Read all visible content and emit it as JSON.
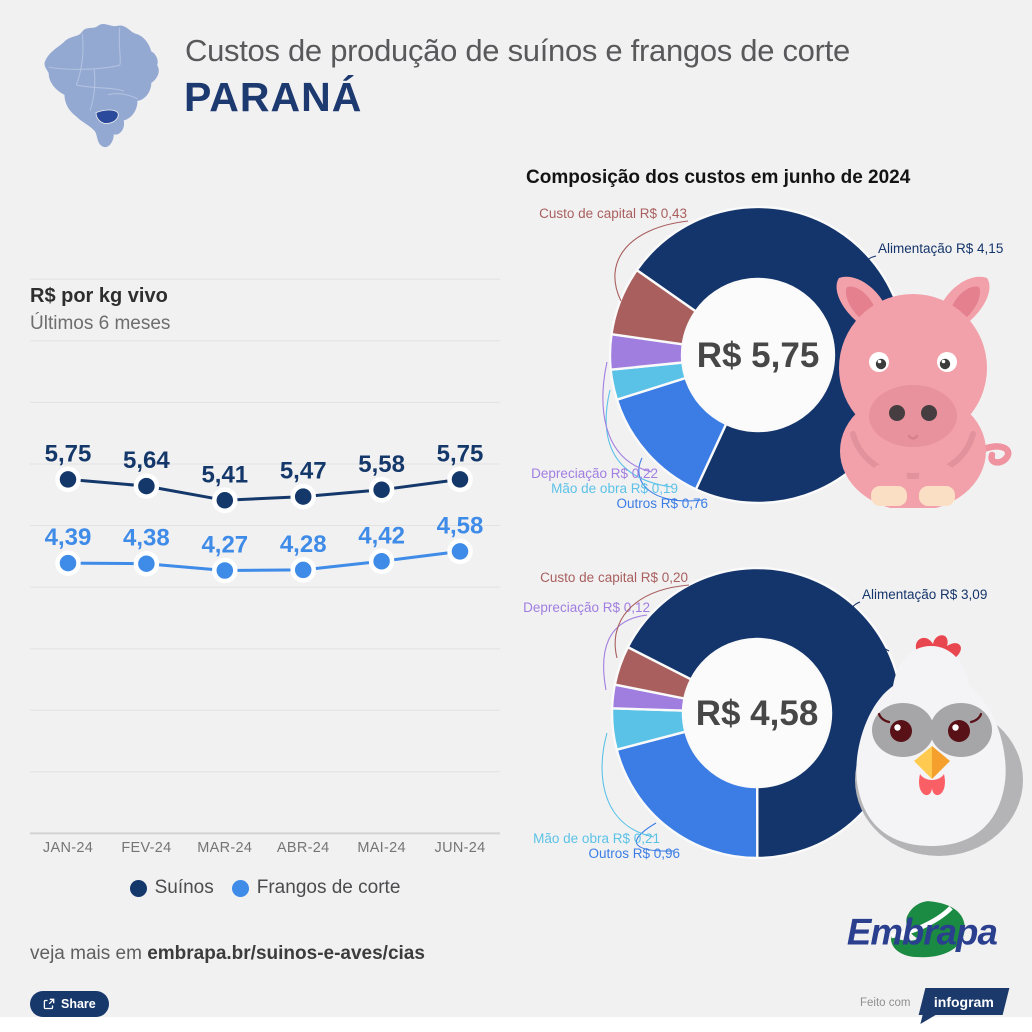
{
  "header": {
    "title": "Custos de produção de suínos e frangos de corte",
    "region": "PARANÁ",
    "map_icon": "brazil-map-parana-highlighted"
  },
  "left_panel": {
    "heading": "R$ por kg vivo",
    "subheading": "Últimos 6 meses"
  },
  "right_panel": {
    "heading": "Composição dos custos em junho de 2024"
  },
  "chart_data": [
    {
      "id": "precos-ultimos-6-meses",
      "type": "line",
      "title": "R$ por kg vivo",
      "subtitle": "Últimos 6 meses",
      "categories": [
        "JAN-24",
        "FEV-24",
        "MAR-24",
        "ABR-24",
        "MAI-24",
        "JUN-24"
      ],
      "series": [
        {
          "key": "suinos",
          "name": "Suínos",
          "color": "#15386b",
          "values": [
            5.75,
            5.64,
            5.41,
            5.47,
            5.58,
            5.75
          ],
          "value_labels": [
            "5,75",
            "5,64",
            "5,41",
            "5,47",
            "5,58",
            "5,75"
          ]
        },
        {
          "key": "frangos",
          "name": "Frangos de corte",
          "color": "#3f8be8",
          "values": [
            4.39,
            4.38,
            4.27,
            4.28,
            4.42,
            4.58
          ],
          "value_labels": [
            "4,39",
            "4,38",
            "4,27",
            "4,28",
            "4,42",
            "4,58"
          ]
        }
      ],
      "ylim": [
        0,
        9
      ],
      "grid": true,
      "legend_position": "bottom"
    },
    {
      "id": "composicao-custos-suinos",
      "type": "pie",
      "animal": "Suínos",
      "center_label": "R$ 5,75",
      "total": 5.75,
      "start_angle": 305,
      "slices": [
        {
          "key": "alimentacao",
          "label": "Alimentação R$ 4,15",
          "value": 4.15,
          "color": "#14356b"
        },
        {
          "key": "outros",
          "label": "Outros R$ 0,76",
          "value": 0.76,
          "color": "#3b7de4"
        },
        {
          "key": "mao-de-obra",
          "label": "Mão de obra R$ 0,19",
          "value": 0.19,
          "color": "#5bc2e7"
        },
        {
          "key": "depreciacao",
          "label": "Depreciação R$ 0,22",
          "value": 0.22,
          "color": "#a07ee0"
        },
        {
          "key": "custo-de-capital",
          "label": "Custo de capital R$ 0,43",
          "value": 0.43,
          "color": "#a85f5e"
        }
      ]
    },
    {
      "id": "composicao-custos-frangos",
      "type": "pie",
      "animal": "Frangos de corte",
      "center_label": "R$ 4,58",
      "total": 4.58,
      "start_angle": 297,
      "slices": [
        {
          "key": "alimentacao",
          "label": "Alimentação R$ 3,09",
          "value": 3.09,
          "color": "#14356b"
        },
        {
          "key": "outros",
          "label": "Outros R$ 0,96",
          "value": 0.96,
          "color": "#3b7de4"
        },
        {
          "key": "mao-de-obra",
          "label": "Mão de obra R$ 0,21",
          "value": 0.21,
          "color": "#5bc2e7"
        },
        {
          "key": "depreciacao",
          "label": "Depreciação R$ 0,12",
          "value": 0.12,
          "color": "#a07ee0"
        },
        {
          "key": "custo-de-capital",
          "label": "Custo de capital R$ 0,20",
          "value": 0.2,
          "color": "#a85f5e"
        }
      ]
    }
  ],
  "footer": {
    "more_text": "veja mais em ",
    "more_link": "embrapa.br/suinos-e-aves/cias",
    "embrapa_logo": "Embrapa",
    "share_label": "Share",
    "made_with": "Feito com",
    "infogram_label": "infogram"
  },
  "colors": {
    "background": "#f2f1f2",
    "brand_navy": "#1d3a70",
    "suinos": "#15386b",
    "frangos": "#3f8be8",
    "grid": "#e2e2e2"
  }
}
